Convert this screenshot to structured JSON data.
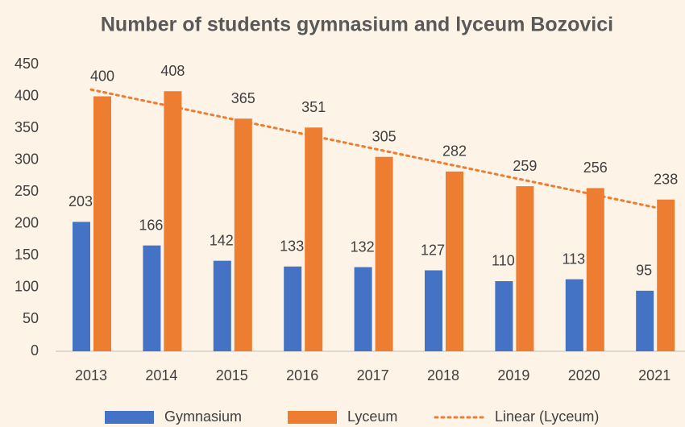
{
  "chart_data": {
    "type": "bar",
    "title": "Number of students gymnasium and lyceum Bozovici",
    "categories": [
      "2013",
      "2014",
      "2015",
      "2016",
      "2017",
      "2018",
      "2019",
      "2020",
      "2021"
    ],
    "series": [
      {
        "name": "Gymnasium",
        "color": "#4472c4",
        "values": [
          203,
          166,
          142,
          133,
          132,
          127,
          110,
          113,
          95
        ]
      },
      {
        "name": "Lyceum",
        "color": "#ed7d31",
        "values": [
          400,
          408,
          365,
          351,
          305,
          282,
          259,
          256,
          238
        ]
      },
      {
        "name": "Linear (Lyceum)",
        "color": "#ed7d31",
        "type": "line",
        "line_style": "dotted",
        "values": [
          410.5,
          387.4,
          364.4,
          341.3,
          318.2,
          295.1,
          272.0,
          249.0,
          225.9
        ]
      }
    ],
    "ylim": [
      0,
      450
    ],
    "yticks": [
      0,
      50,
      100,
      150,
      200,
      250,
      300,
      350,
      400,
      450
    ],
    "grid": false,
    "data_labels": true,
    "legend": "bottom"
  }
}
